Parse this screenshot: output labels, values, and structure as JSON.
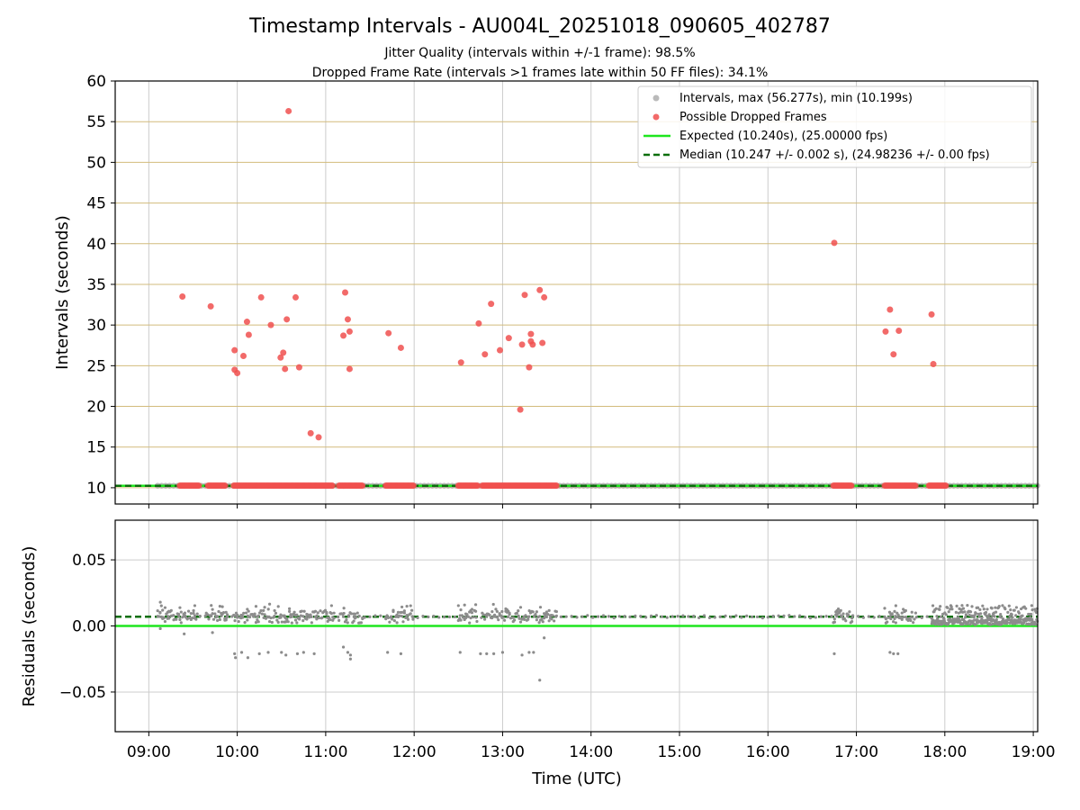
{
  "title": "Timestamp Intervals - AU004L_20251018_090605_402787",
  "subtitle_1": "Jitter Quality (intervals within +/-1 frame): 98.5%",
  "subtitle_2": "Dropped Frame Rate (intervals >1 frames late within 50 FF files): 34.1%",
  "colors": {
    "intervals": "#8c8c8c",
    "dropped": "#f0504f",
    "expected": "#1ee61e",
    "median": "#0a6e0a",
    "hgrid_top": "#d2bb7c",
    "grid": "#cccccc"
  },
  "chart_data": [
    {
      "type": "scatter",
      "panel": "top",
      "xlabel": "",
      "ylabel": "Intervals (seconds)",
      "ylim": [
        8,
        60
      ],
      "yticks": [
        10,
        15,
        20,
        25,
        30,
        35,
        40,
        45,
        50,
        55,
        60
      ],
      "xlim_hours": [
        8.62,
        19.05
      ],
      "grid": "on",
      "legend_placement": "top-right",
      "legend": [
        "Intervals, max (56.277s), min (10.199s)",
        "Possible Dropped Frames",
        "Expected (10.240s), (25.00000 fps)",
        "Median (10.247 +/- 0.002 s), (24.98236 +/- 0.00 fps)"
      ],
      "expected_value": 10.24,
      "median_value": 10.247,
      "interval_baseline": {
        "value": 10.25,
        "x_range": [
          9.1,
          19.05
        ]
      },
      "dropped_clusters_at_baseline": [
        [
          9.35,
          9.57
        ],
        [
          9.67,
          9.87
        ],
        [
          9.96,
          11.08
        ],
        [
          11.15,
          11.42
        ],
        [
          11.68,
          12.0
        ],
        [
          12.5,
          12.72
        ],
        [
          12.77,
          13.62
        ],
        [
          16.74,
          16.95
        ],
        [
          17.32,
          17.68
        ],
        [
          17.82,
          18.02
        ]
      ],
      "dropped_points": [
        [
          9.38,
          33.5
        ],
        [
          9.7,
          32.3
        ],
        [
          9.97,
          26.9
        ],
        [
          9.97,
          24.5
        ],
        [
          10.0,
          24.1
        ],
        [
          10.07,
          26.2
        ],
        [
          10.11,
          30.4
        ],
        [
          10.13,
          28.8
        ],
        [
          10.27,
          33.4
        ],
        [
          10.38,
          30.0
        ],
        [
          10.49,
          26.0
        ],
        [
          10.52,
          26.6
        ],
        [
          10.54,
          24.6
        ],
        [
          10.56,
          30.7
        ],
        [
          10.58,
          56.3
        ],
        [
          10.66,
          33.4
        ],
        [
          10.7,
          24.8
        ],
        [
          10.83,
          16.7
        ],
        [
          10.92,
          16.2
        ],
        [
          11.2,
          28.7
        ],
        [
          11.22,
          34.0
        ],
        [
          11.25,
          30.7
        ],
        [
          11.27,
          29.2
        ],
        [
          11.27,
          24.6
        ],
        [
          11.71,
          29.0
        ],
        [
          11.85,
          27.2
        ],
        [
          12.53,
          25.4
        ],
        [
          12.73,
          30.2
        ],
        [
          12.8,
          26.4
        ],
        [
          12.87,
          32.6
        ],
        [
          12.97,
          26.9
        ],
        [
          13.07,
          28.4
        ],
        [
          13.2,
          19.6
        ],
        [
          13.22,
          27.6
        ],
        [
          13.25,
          33.7
        ],
        [
          13.3,
          24.8
        ],
        [
          13.32,
          28.0
        ],
        [
          13.32,
          28.9
        ],
        [
          13.34,
          27.6
        ],
        [
          13.42,
          34.3
        ],
        [
          13.45,
          27.8
        ],
        [
          13.47,
          33.4
        ],
        [
          16.75,
          40.1
        ],
        [
          17.33,
          29.2
        ],
        [
          17.38,
          31.9
        ],
        [
          17.42,
          26.4
        ],
        [
          17.48,
          29.3
        ],
        [
          17.85,
          31.3
        ],
        [
          17.87,
          25.2
        ]
      ]
    },
    {
      "type": "scatter",
      "panel": "bottom",
      "xlabel": "Time (UTC)",
      "ylabel": "Residuals (seconds)",
      "ylim": [
        -0.08,
        0.08
      ],
      "yticks": [
        -0.05,
        0.0,
        0.05
      ],
      "ytick_labels": [
        "−0.05",
        "0.00",
        "0.05"
      ],
      "xlim_hours": [
        8.62,
        19.05
      ],
      "xticks_hours": [
        9,
        10,
        11,
        12,
        13,
        14,
        15,
        16,
        17,
        18,
        19
      ],
      "xtick_labels": [
        "09:00",
        "10:00",
        "11:00",
        "12:00",
        "13:00",
        "14:00",
        "15:00",
        "16:00",
        "17:00",
        "18:00",
        "19:00"
      ],
      "grid": "on",
      "expected_value": 0.0,
      "median_value": 0.007,
      "residual_band": {
        "center": 0.007,
        "spread": 0.003
      },
      "dense_activity_segments": [
        [
          9.1,
          9.55
        ],
        [
          9.65,
          9.9
        ],
        [
          9.96,
          11.1
        ],
        [
          11.15,
          11.42
        ],
        [
          11.68,
          12.0
        ],
        [
          12.5,
          12.72
        ],
        [
          12.77,
          13.62
        ],
        [
          16.74,
          16.95
        ],
        [
          17.32,
          17.68
        ]
      ],
      "dense_tail": {
        "x_range": [
          17.85,
          19.05
        ],
        "y_range": [
          0.001,
          0.016
        ]
      },
      "outlier_points": [
        [
          9.13,
          0.018
        ],
        [
          9.13,
          -0.002
        ],
        [
          9.4,
          -0.006
        ],
        [
          9.72,
          -0.005
        ],
        [
          9.97,
          -0.021
        ],
        [
          9.98,
          -0.024
        ],
        [
          10.05,
          -0.02
        ],
        [
          10.12,
          -0.024
        ],
        [
          10.25,
          -0.021
        ],
        [
          10.35,
          -0.02
        ],
        [
          10.5,
          -0.02
        ],
        [
          10.55,
          -0.022
        ],
        [
          10.68,
          -0.021
        ],
        [
          10.75,
          -0.02
        ],
        [
          10.87,
          -0.021
        ],
        [
          11.2,
          -0.016
        ],
        [
          11.25,
          -0.02
        ],
        [
          11.28,
          -0.022
        ],
        [
          11.28,
          -0.025
        ],
        [
          11.7,
          -0.02
        ],
        [
          11.85,
          -0.021
        ],
        [
          12.52,
          -0.02
        ],
        [
          12.75,
          -0.021
        ],
        [
          12.82,
          -0.021
        ],
        [
          12.9,
          -0.021
        ],
        [
          13.0,
          -0.02
        ],
        [
          13.22,
          -0.022
        ],
        [
          13.3,
          -0.02
        ],
        [
          13.35,
          -0.02
        ],
        [
          13.42,
          -0.041
        ],
        [
          13.47,
          -0.009
        ],
        [
          16.75,
          -0.021
        ],
        [
          17.38,
          -0.02
        ],
        [
          17.42,
          -0.021
        ],
        [
          17.47,
          -0.021
        ]
      ]
    }
  ]
}
